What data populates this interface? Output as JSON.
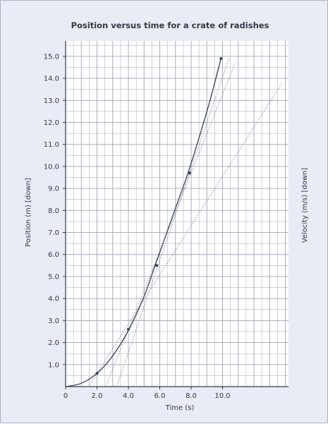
{
  "chart_data": {
    "type": "line",
    "title": "Position versus time for a crate of radishes",
    "xlabel": "Time (s)",
    "ylabel": "Position (m) [down]",
    "y2label": "Velocity (m/s) [down]",
    "xlim": [
      0,
      14.2
    ],
    "ylim": [
      0,
      15.7
    ],
    "x_ticks": [
      0,
      2,
      4,
      6,
      8,
      10
    ],
    "x_tick_labels": [
      "0",
      "2.0",
      "4.0",
      "6.0",
      "8.0",
      "10.0"
    ],
    "y_ticks": [
      1,
      2,
      3,
      4,
      5,
      6,
      7,
      8,
      9,
      10,
      11,
      12,
      13,
      14,
      15
    ],
    "y_tick_labels": [
      "1.0",
      "2.0",
      "3.0",
      "4.0",
      "5.0",
      "6.0",
      "7.0",
      "8.0",
      "9.0",
      "10.0",
      "11.0",
      "12.0",
      "13.0",
      "14.0",
      "15.0"
    ],
    "grid": true,
    "grid_minor_step": 0.5,
    "series": [
      {
        "x": [
          0,
          1.0,
          2.0,
          3.0,
          4.0,
          5.0,
          5.7,
          6.5,
          7.0,
          7.8,
          8.5,
          9.2,
          9.9
        ],
        "y": [
          0,
          0.15,
          0.6,
          1.4,
          2.55,
          4.1,
          5.5,
          7.1,
          8.1,
          9.7,
          11.3,
          13.0,
          14.9
        ],
        "markers_at": [
          [
            2.0,
            0.6
          ],
          [
            4.0,
            2.6
          ],
          [
            5.8,
            5.5
          ],
          [
            7.9,
            9.7
          ],
          [
            9.9,
            14.9
          ]
        ]
      }
    ],
    "tangent_lines": [
      {
        "from": [
          1.45,
          0
        ],
        "to": [
          13.8,
          13.8
        ]
      },
      {
        "from": [
          2.55,
          0
        ],
        "to": [
          10.8,
          14.7
        ]
      },
      {
        "from": [
          3.25,
          0
        ],
        "to": [
          10.4,
          14.9
        ]
      }
    ],
    "colors": {
      "background": "#e9ebf5",
      "plot": "#ffffff",
      "grid": "#9fa6b8",
      "curve": "#3a3f52",
      "tangent": "#7a8094"
    }
  }
}
